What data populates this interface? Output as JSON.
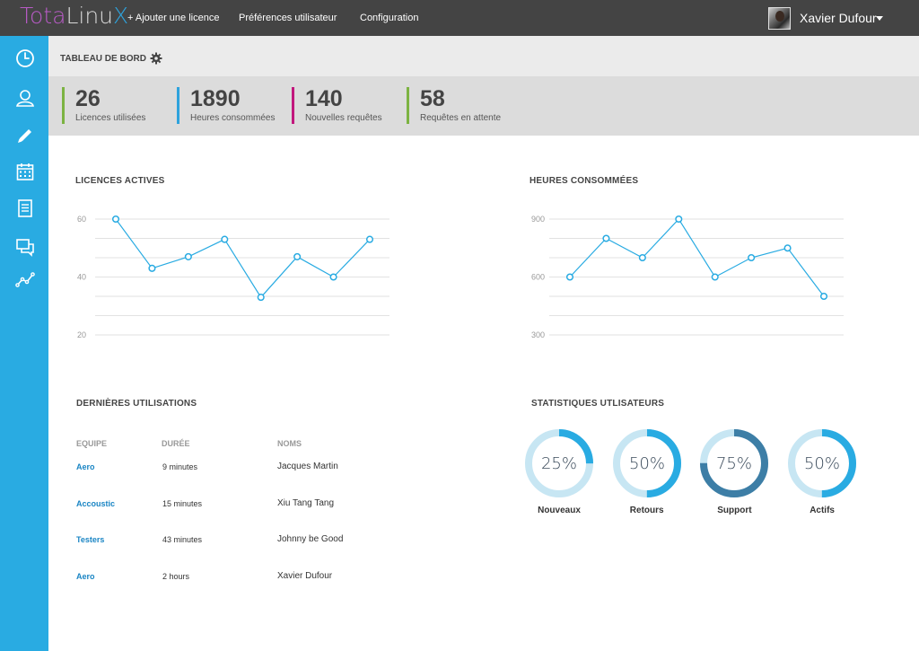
{
  "app": {
    "logo_part1": "Tota",
    "logo_part2": "Linu",
    "logo_part3": "X"
  },
  "nav": {
    "add_license": "+ Ajouter une licence",
    "preferences": "Préférences utilisateur",
    "configuration": "Configuration"
  },
  "user": {
    "name": "Xavier Dufour"
  },
  "sidebar": {
    "items": [
      {
        "icon": "clock-icon"
      },
      {
        "icon": "user-icon"
      },
      {
        "icon": "pencil-icon"
      },
      {
        "icon": "calendar-icon"
      },
      {
        "icon": "document-icon"
      },
      {
        "icon": "chat-icon"
      },
      {
        "icon": "analytics-icon"
      }
    ]
  },
  "dashboard": {
    "title": "TABLEAU DE BORD"
  },
  "stats": [
    {
      "value": "26",
      "label": "Licences utilisées",
      "color": "#7cb342"
    },
    {
      "value": "1890",
      "label": "Heures consommées",
      "color": "#2ea3dd"
    },
    {
      "value": "140",
      "label": "Nouvelles requêtes",
      "color": "#c2187d"
    },
    {
      "value": "58",
      "label": "Requêtes en attente",
      "color": "#7cb342"
    }
  ],
  "charts": {
    "licences_title": "LICENCES ACTIVES",
    "heures_title": "HEURES CONSOMMÉES"
  },
  "chart_data": [
    {
      "type": "line",
      "title": "LICENCES ACTIVES",
      "x": [
        1,
        2,
        3,
        4,
        5,
        6,
        7,
        8
      ],
      "values": [
        60,
        43,
        47,
        53,
        33,
        47,
        40,
        53
      ],
      "yticks": [
        "60",
        "40",
        "20"
      ],
      "ylim": [
        20,
        60
      ],
      "grid": true,
      "color": "#29abe2"
    },
    {
      "type": "line",
      "title": "HEURES CONSOMMÉES",
      "x": [
        1,
        2,
        3,
        4,
        5,
        6,
        7,
        8
      ],
      "values": [
        600,
        800,
        700,
        900,
        600,
        700,
        750,
        500
      ],
      "yticks": [
        "900",
        "600",
        "300"
      ],
      "ylim": [
        300,
        900
      ],
      "grid": true,
      "color": "#29abe2"
    }
  ],
  "usage": {
    "title": "DERNIÈRES UTILISATIONS",
    "headers": {
      "team": "EQUIPE",
      "duration": "DURÉE",
      "names": "NOMS"
    },
    "rows": [
      {
        "team": "Aero",
        "duration": "9 minutes",
        "name": "Jacques Martin"
      },
      {
        "team": "Accoustic",
        "duration": "15 minutes",
        "name": "Xiu Tang Tang"
      },
      {
        "team": "Testers",
        "duration": "43 minutes",
        "name": "Johnny be Good"
      },
      {
        "team": "Aero",
        "duration": "2 hours",
        "name": "Xavier Dufour"
      }
    ]
  },
  "user_stats": {
    "title": "STATISTIQUES UTLISATEURS",
    "items": [
      {
        "pct": 25,
        "pct_text": "25%",
        "label": "Nouveaux",
        "color": "#29abe2",
        "track": "#c7e6f3"
      },
      {
        "pct": 50,
        "pct_text": "50%",
        "label": "Retours",
        "color": "#29abe2",
        "track": "#c7e6f3"
      },
      {
        "pct": 75,
        "pct_text": "75%",
        "label": "Support",
        "color": "#3d7ea6",
        "track": "#c7e6f3"
      },
      {
        "pct": 50,
        "pct_text": "50%",
        "label": "Actifs",
        "color": "#29abe2",
        "track": "#c7e6f3"
      }
    ]
  }
}
